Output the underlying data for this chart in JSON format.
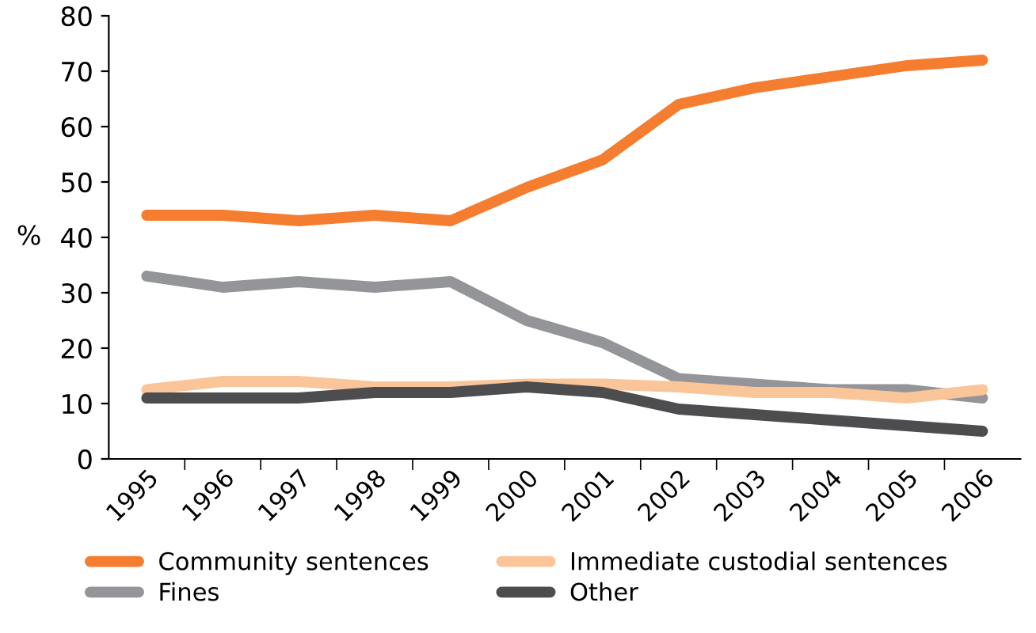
{
  "chart_data": {
    "type": "line",
    "ylabel": "%",
    "categories": [
      "1995",
      "1996",
      "1997",
      "1998",
      "1999",
      "2000",
      "2001",
      "2002",
      "2003",
      "2004",
      "2005",
      "2006"
    ],
    "series": [
      {
        "name": "Community sentences",
        "color": "#f47d30",
        "values": [
          44,
          44,
          43,
          44,
          43,
          49,
          54,
          64,
          67,
          69,
          71,
          72
        ]
      },
      {
        "name": "Fines",
        "color": "#939598",
        "values": [
          33,
          31,
          32,
          31,
          32,
          25,
          21,
          14.5,
          13.5,
          12.5,
          12.5,
          11
        ]
      },
      {
        "name": "Immediate custodial sentences",
        "color": "#fbc59a",
        "values": [
          12.5,
          14,
          14,
          13,
          13,
          13.5,
          13.5,
          13,
          12,
          12,
          11,
          12.5
        ]
      },
      {
        "name": "Other",
        "color": "#4d4d4f",
        "values": [
          11,
          11,
          11,
          12,
          12,
          13,
          12,
          9,
          8,
          7,
          6,
          5
        ]
      }
    ],
    "ylim": [
      0,
      80
    ],
    "yticks": [
      0,
      10,
      20,
      30,
      40,
      50,
      60,
      70,
      80
    ],
    "grid": false,
    "legend": "bottom",
    "marker": "none",
    "line_style": "solid"
  }
}
